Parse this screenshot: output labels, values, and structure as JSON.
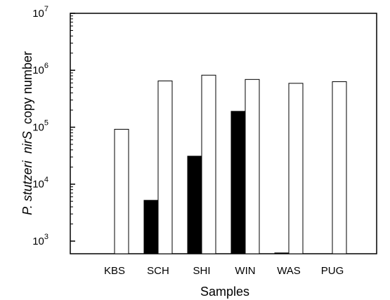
{
  "chart_data": {
    "type": "bar",
    "scale": "log",
    "categories": [
      "KBS",
      "SCH",
      "SHI",
      "WIN",
      "WAS",
      "PUG"
    ],
    "series": [
      {
        "fill": "#000000",
        "values": [
          null,
          5200,
          31000,
          190000,
          620,
          null
        ]
      },
      {
        "fill": "#ffffff",
        "values": [
          92000,
          650000,
          820000,
          690000,
          590000,
          630000
        ]
      }
    ],
    "ylim": [
      600,
      10000000
    ],
    "y_ticks": [
      {
        "value": 1000,
        "base": "10",
        "exp": "3"
      },
      {
        "value": 10000,
        "base": "10",
        "exp": "4"
      },
      {
        "value": 100000,
        "base": "10",
        "exp": "5"
      },
      {
        "value": 1000000,
        "base": "10",
        "exp": "6"
      },
      {
        "value": 10000000,
        "base": "10",
        "exp": "7"
      }
    ],
    "xlabel": "Samples",
    "ylabel": {
      "organism": "P. stutzeri",
      "gene": "nirS",
      "rest": "copy number"
    },
    "grid": false,
    "legend": "none"
  }
}
